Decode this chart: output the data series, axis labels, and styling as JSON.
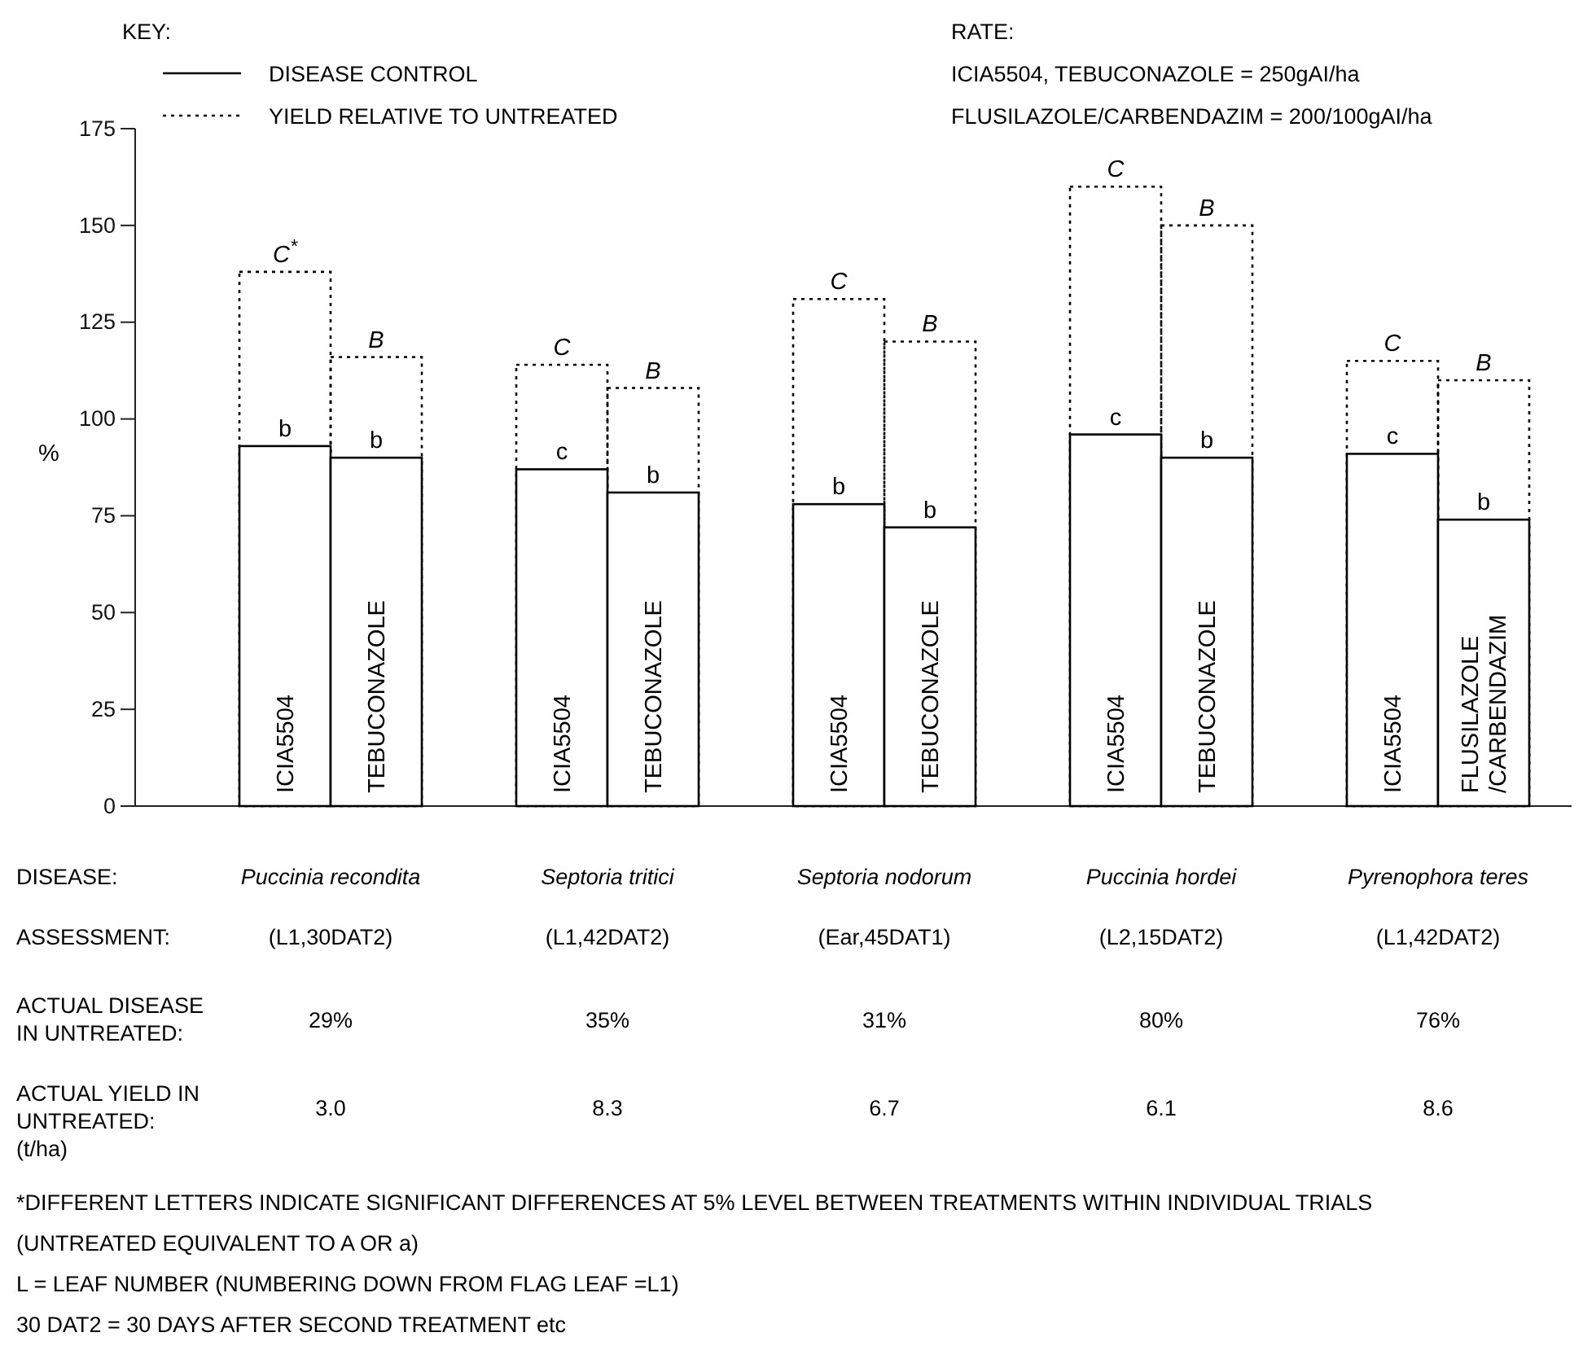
{
  "chart_data": {
    "type": "bar",
    "ylabel": "%",
    "legend_title": "KEY:",
    "legend": "top left",
    "grid": false,
    "categories": [
      "ICIA5504",
      "TEBUCONAZOLE",
      "ICIA5504",
      "TEBUCONAZOLE",
      "ICIA5504",
      "TEBUCONAZOLE",
      "ICIA5504",
      "TEBUCONAZOLE",
      "ICIA5504",
      "FLUSILAZOLE /CARBENDAZIM"
    ],
    "ylim": [
      0,
      175
    ],
    "yticks": [
      0,
      25,
      50,
      75,
      100,
      125,
      150,
      175
    ],
    "series": [
      {
        "name": "YIELD RELATIVE TO UNTREATED",
        "color": "#000000",
        "line_style": "dotted",
        "values": [
          138,
          116,
          114,
          108,
          131,
          120,
          160,
          150,
          115,
          110
        ],
        "value_labels": [
          "C$^{*}$",
          "B",
          "C",
          "B",
          "C",
          "B",
          "C",
          "B",
          "C",
          "B"
        ]
      },
      {
        "name": "DISEASE CONTROL",
        "color": "#000000",
        "line_style": "solid",
        "values": [
          93,
          90,
          87,
          81,
          78,
          72,
          96,
          90,
          91,
          74
        ],
        "value_labels": [
          "b",
          "b",
          "c",
          "b",
          "b",
          "b",
          "c",
          "b",
          "c",
          "b"
        ]
      }
    ],
    "annotations": [
      "RATE:",
      "ICIA5504, TEBUCONAZOLE = 250gAI/ha",
      "FLUSILAZOLE/CARBENDAZIM = 200/100gAI/ha",
      "DISEASE:",
      "Puccinia recondita",
      "Septoria tritici",
      "Septoria nodorum",
      "Puccinia hordei",
      "Pyrenophora teres",
      "ASSESSMENT:",
      "(L1,30DAT2)",
      "(L1,42DAT2)",
      "(Ear,45DAT1)",
      "(L2,15DAT2)",
      "(L1,42DAT2)",
      "ACTUAL DISEASE IN UNTREATED:",
      "29%",
      "35%",
      "31%",
      "80%",
      "76%",
      "ACTUAL YIELD IN UNTREATED: (t/ha)",
      "3.0",
      "8.3",
      "6.7",
      "6.1",
      "8.6",
      "*DIFFERENT LETTERS INDICATE SIGNIFICANT DIFFERENCES AT 5% LEVEL BETWEEN TREATMENTS WITHIN INDIVIDUAL TRIALS (UNTREATED EQUIVALENT TO A OR a)",
      "L = LEAF NUMBER (NUMBERING DOWN FROM FLAG LEAF =L1)",
      "30 DAT2 = 30 DAYS AFTER SECOND TREATMENT etc"
    ]
  }
}
